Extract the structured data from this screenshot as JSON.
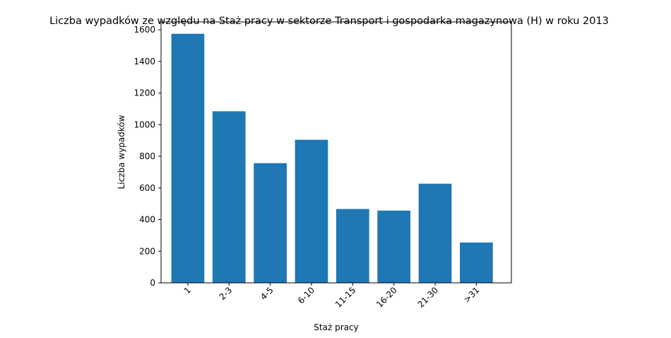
{
  "chart_data": {
    "type": "bar",
    "title": "Liczba wypadków ze względu na Staż pracy w sektorze Transport i gospodarka magazynowa  (H)   w roku 2013",
    "xlabel": "Staż pracy",
    "ylabel": "Liczba wypadków",
    "categories": [
      "1",
      "2-3",
      "4-5",
      "6-10",
      "11-15",
      "16-20",
      "21-30",
      ">31"
    ],
    "values": [
      1575,
      1085,
      757,
      905,
      467,
      457,
      627,
      255
    ],
    "ylim": [
      0,
      1650
    ],
    "yticks": [
      0,
      200,
      400,
      600,
      800,
      1000,
      1200,
      1400,
      1600
    ],
    "grid": false,
    "colors": {
      "bar": "#1f77b4",
      "axis": "#000000"
    }
  }
}
